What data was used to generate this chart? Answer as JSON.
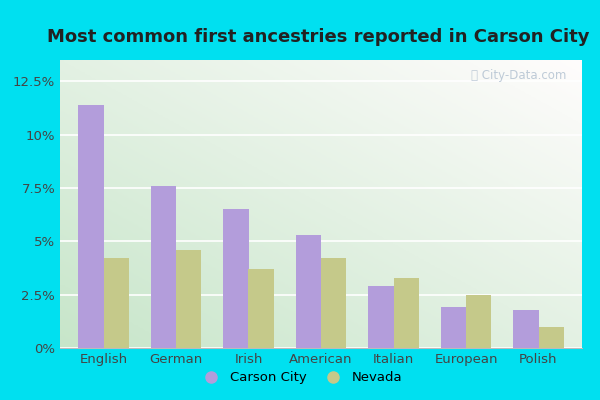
{
  "title": "Most common first ancestries reported in Carson City",
  "categories": [
    "English",
    "German",
    "Irish",
    "American",
    "Italian",
    "European",
    "Polish"
  ],
  "carson_city": [
    11.4,
    7.6,
    6.5,
    5.3,
    2.9,
    1.9,
    1.8
  ],
  "nevada": [
    4.2,
    4.6,
    3.7,
    4.2,
    3.3,
    2.5,
    1.0
  ],
  "bar_color_carson": "#b39ddb",
  "bar_color_nevada": "#c5c98a",
  "ylim": [
    0,
    13.5
  ],
  "yticks": [
    0,
    2.5,
    5.0,
    7.5,
    10.0,
    12.5
  ],
  "ytick_labels": [
    "0%",
    "2.5%",
    "5%",
    "7.5%",
    "10%",
    "12.5%"
  ],
  "background_color_fig": "#00e0f0",
  "title_fontsize": 13,
  "legend_labels": [
    "Carson City",
    "Nevada"
  ],
  "watermark": "ⓘ City-Data.com",
  "grid_color": "#ffffff",
  "bar_width": 0.35
}
